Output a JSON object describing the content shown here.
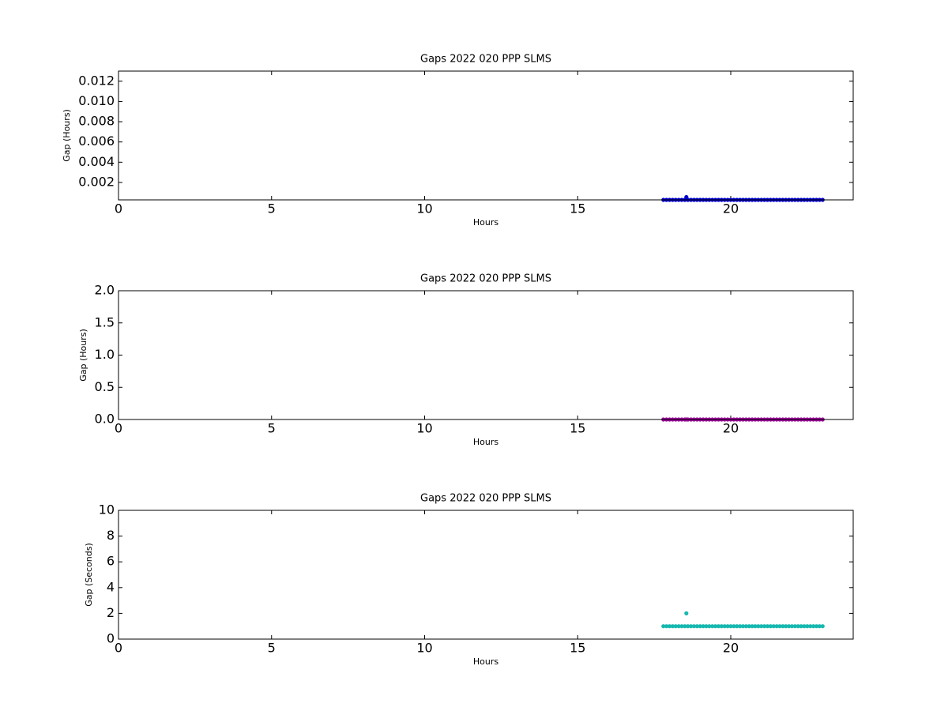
{
  "chart_data": [
    {
      "type": "scatter",
      "title": "Gaps 2022 020 PPP  SLMS",
      "x_label": "Hours",
      "y_label": "Gap (Hours)",
      "color": "#0000cc",
      "x": [
        17.8,
        17.9,
        18.0,
        18.1,
        18.2,
        18.3,
        18.4,
        18.5,
        18.55,
        18.6,
        18.7,
        18.8,
        18.9,
        19.0,
        19.1,
        19.2,
        19.3,
        19.4,
        19.5,
        19.6,
        19.7,
        19.8,
        19.9,
        20.0,
        20.1,
        20.2,
        20.3,
        20.4,
        20.5,
        20.6,
        20.7,
        20.8,
        20.9,
        21.0,
        21.1,
        21.2,
        21.3,
        21.4,
        21.5,
        21.6,
        21.7,
        21.8,
        21.9,
        22.0,
        22.1,
        22.2,
        22.3,
        22.4,
        22.5,
        22.6,
        22.7,
        22.8,
        22.9,
        23.0
      ],
      "values": [
        0.000278,
        0.000278,
        0.000278,
        0.000278,
        0.000278,
        0.000278,
        0.000278,
        0.000278,
        0.000556,
        0.000278,
        0.000278,
        0.000278,
        0.000278,
        0.000278,
        0.000278,
        0.000278,
        0.000278,
        0.000278,
        0.000278,
        0.000278,
        0.000278,
        0.000278,
        0.000278,
        0.000278,
        0.000278,
        0.000278,
        0.000278,
        0.000278,
        0.000278,
        0.000278,
        0.000278,
        0.000278,
        0.000278,
        0.000278,
        0.000278,
        0.000278,
        0.000278,
        0.000278,
        0.000278,
        0.000278,
        0.000278,
        0.000278,
        0.000278,
        0.000278,
        0.000278,
        0.000278,
        0.000278,
        0.000278,
        0.000278,
        0.000278,
        0.000278,
        0.000278,
        0.000278,
        0.000278
      ],
      "xlim": [
        0,
        24
      ],
      "xticks": [
        0,
        5,
        10,
        15,
        20
      ],
      "ylim": [
        0.000278,
        0.013
      ],
      "yticks": [
        0.002,
        0.004,
        0.006,
        0.008,
        {
          "value": 0.01,
          "label": "0.010"
        },
        0.012
      ]
    },
    {
      "type": "scatter",
      "title": "Gaps 2022 020 PPP  SLMS",
      "x_label": "Hours",
      "y_label": "Gap (Hours)",
      "color": "#990099",
      "x": [
        17.8,
        17.9,
        18.0,
        18.1,
        18.2,
        18.3,
        18.4,
        18.5,
        18.55,
        18.6,
        18.7,
        18.8,
        18.9,
        19.0,
        19.1,
        19.2,
        19.3,
        19.4,
        19.5,
        19.6,
        19.7,
        19.8,
        19.9,
        20.0,
        20.1,
        20.2,
        20.3,
        20.4,
        20.5,
        20.6,
        20.7,
        20.8,
        20.9,
        21.0,
        21.1,
        21.2,
        21.3,
        21.4,
        21.5,
        21.6,
        21.7,
        21.8,
        21.9,
        22.0,
        22.1,
        22.2,
        22.3,
        22.4,
        22.5,
        22.6,
        22.7,
        22.8,
        22.9,
        23.0
      ],
      "values": [
        0.000278,
        0.000278,
        0.000278,
        0.000278,
        0.000278,
        0.000278,
        0.000278,
        0.000278,
        0.000556,
        0.000278,
        0.000278,
        0.000278,
        0.000278,
        0.000278,
        0.000278,
        0.000278,
        0.000278,
        0.000278,
        0.000278,
        0.000278,
        0.000278,
        0.000278,
        0.000278,
        0.000278,
        0.000278,
        0.000278,
        0.000278,
        0.000278,
        0.000278,
        0.000278,
        0.000278,
        0.000278,
        0.000278,
        0.000278,
        0.000278,
        0.000278,
        0.000278,
        0.000278,
        0.000278,
        0.000278,
        0.000278,
        0.000278,
        0.000278,
        0.000278,
        0.000278,
        0.000278,
        0.000278,
        0.000278,
        0.000278,
        0.000278,
        0.000278,
        0.000278,
        0.000278,
        0.000278
      ],
      "xlim": [
        0,
        24
      ],
      "xticks": [
        0,
        5,
        10,
        15,
        20
      ],
      "ylim": [
        0,
        2
      ],
      "yticks": [
        {
          "value": 0,
          "label": "0.0"
        },
        0.5,
        {
          "value": 1,
          "label": "1.0"
        },
        1.5,
        {
          "value": 2,
          "label": "2.0"
        }
      ]
    },
    {
      "type": "scatter",
      "title": "Gaps 2022 020 PPP  SLMS",
      "x_label": "Hours",
      "y_label": "Gap (Seconds)",
      "color": "#17b8b0",
      "x": [
        17.8,
        17.9,
        18.0,
        18.1,
        18.2,
        18.3,
        18.4,
        18.5,
        18.55,
        18.6,
        18.7,
        18.8,
        18.9,
        19.0,
        19.1,
        19.2,
        19.3,
        19.4,
        19.5,
        19.6,
        19.7,
        19.8,
        19.9,
        20.0,
        20.1,
        20.2,
        20.3,
        20.4,
        20.5,
        20.6,
        20.7,
        20.8,
        20.9,
        21.0,
        21.1,
        21.2,
        21.3,
        21.4,
        21.5,
        21.6,
        21.7,
        21.8,
        21.9,
        22.0,
        22.1,
        22.2,
        22.3,
        22.4,
        22.5,
        22.6,
        22.7,
        22.8,
        22.9,
        23.0
      ],
      "values": [
        1,
        1,
        1,
        1,
        1,
        1,
        1,
        1,
        2,
        1,
        1,
        1,
        1,
        1,
        1,
        1,
        1,
        1,
        1,
        1,
        1,
        1,
        1,
        1,
        1,
        1,
        1,
        1,
        1,
        1,
        1,
        1,
        1,
        1,
        1,
        1,
        1,
        1,
        1,
        1,
        1,
        1,
        1,
        1,
        1,
        1,
        1,
        1,
        1,
        1,
        1,
        1,
        1,
        1
      ],
      "xlim": [
        0,
        24
      ],
      "xticks": [
        0,
        5,
        10,
        15,
        20
      ],
      "ylim": [
        0,
        10
      ],
      "yticks": [
        0,
        2,
        4,
        6,
        8,
        10
      ]
    }
  ]
}
